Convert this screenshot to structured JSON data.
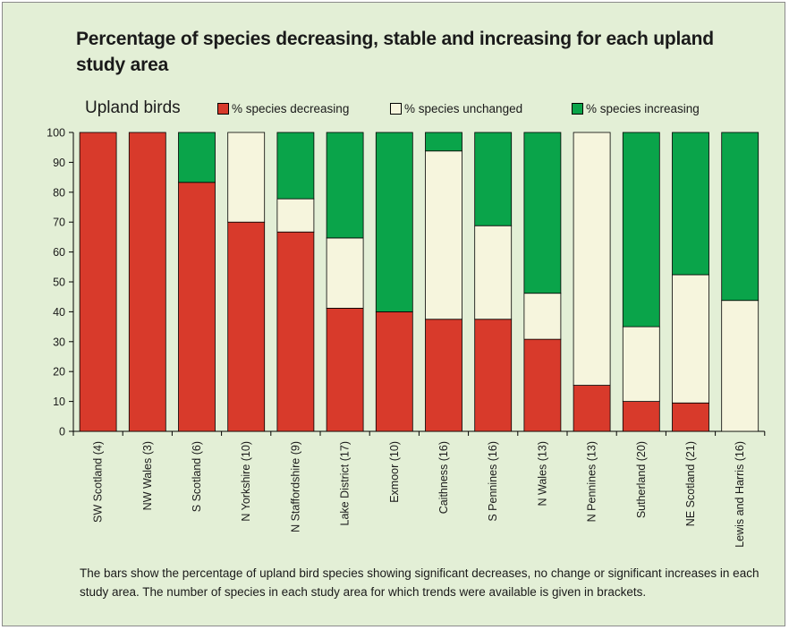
{
  "chart_data": {
    "type": "bar",
    "stacked": true,
    "title": "Percentage of species decreasing, stable and increasing for each upland study area",
    "subtitle": "Upland birds",
    "ylim": [
      0,
      100
    ],
    "yticks": [
      "0",
      "10",
      "20",
      "30",
      "40",
      "50",
      "60",
      "70",
      "80",
      "90",
      "100"
    ],
    "categories": [
      "SW Scotland (4)",
      "NW Wales (3)",
      "S Scotland (6)",
      "N Yorkshire (10)",
      "N Staffordshire (9)",
      "Lake District (17)",
      "Exmoor (10)",
      "Caithness (16)",
      "S Pennines (16)",
      "N Wales (13)",
      "N Pennines (13)",
      "Sutherland (20)",
      "NE Scotland (21)",
      "Lewis and Harris (16)"
    ],
    "series": [
      {
        "name": "% species decreasing",
        "color": "#d83a2b",
        "values": [
          100,
          100,
          83.3,
          70,
          66.7,
          41.2,
          40,
          37.5,
          37.5,
          30.8,
          15.4,
          10,
          9.5,
          0
        ]
      },
      {
        "name": "% species unchanged",
        "color": "#f6f5dd",
        "values": [
          0,
          0,
          0,
          30,
          11.1,
          23.5,
          0,
          56.3,
          31.3,
          15.4,
          84.6,
          25,
          42.9,
          43.8
        ]
      },
      {
        "name": "% species increasing",
        "color": "#0aa44a",
        "values": [
          0,
          0,
          16.7,
          0,
          22.2,
          35.3,
          60,
          6.2,
          31.2,
          53.8,
          0,
          65,
          47.6,
          56.2
        ]
      }
    ],
    "legend_position": "top",
    "grid": false
  },
  "caption": "The bars show the percentage of upland bird species showing significant decreases, no change or significant increases in each study area. The number of species in each study area for which trends were available is given in brackets."
}
